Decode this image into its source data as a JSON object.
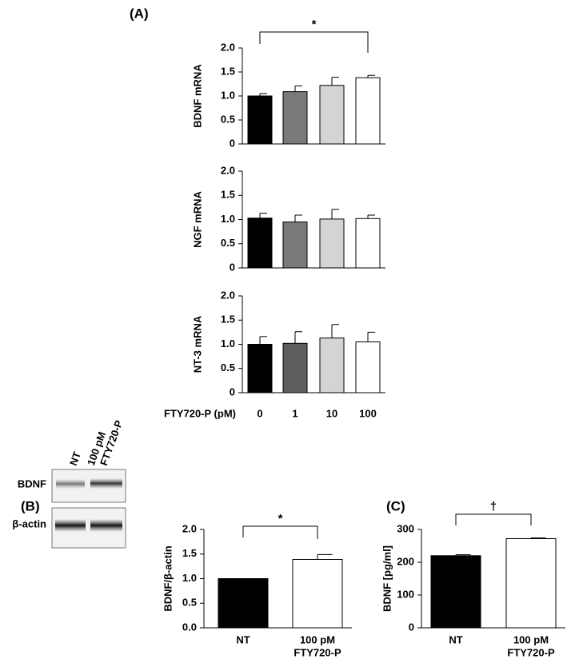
{
  "chart_data": [
    {
      "type": "bar",
      "panel_label": "(A)",
      "y_label": "BDNF mRNA",
      "annotation": "*",
      "values": [
        1.0,
        1.09,
        1.22,
        1.38
      ],
      "errors": [
        0.05,
        0.12,
        0.17,
        0.05
      ],
      "colors": [
        "#000000",
        "#7a7a7a",
        "#d4d4d4",
        "#ffffff"
      ],
      "ylim": [
        0,
        2
      ],
      "yticks": [
        0,
        0.5,
        {
          "value": 1,
          "label": "1.0"
        },
        1.5,
        {
          "value": 2,
          "label": "2.0"
        }
      ]
    },
    {
      "type": "bar",
      "y_label": "NGF mRNA",
      "values": [
        1.03,
        0.95,
        1.01,
        1.02
      ],
      "errors": [
        0.1,
        0.14,
        0.2,
        0.07
      ],
      "colors": [
        "#000000",
        "#7a7a7a",
        "#d4d4d4",
        "#ffffff"
      ],
      "ylim": [
        0,
        2
      ],
      "yticks": [
        0,
        0.5,
        {
          "value": 1,
          "label": "1.0"
        },
        1.5,
        {
          "value": 2,
          "label": "2.0"
        }
      ]
    },
    {
      "type": "bar",
      "y_label": "NT-3 mRNA",
      "x_label": "FTY720-P (pM)",
      "categories": [
        "0",
        "1",
        "10",
        "100"
      ],
      "values": [
        1.0,
        1.02,
        1.13,
        1.05
      ],
      "errors": [
        0.16,
        0.24,
        0.28,
        0.2
      ],
      "colors": [
        "#000000",
        "#5e5e5e",
        "#d4d4d4",
        "#ffffff"
      ],
      "ylim": [
        0,
        2
      ],
      "yticks": [
        0,
        0.5,
        {
          "value": 1,
          "label": "1.0"
        },
        1.5,
        {
          "value": 2,
          "label": "2.0"
        }
      ]
    },
    {
      "type": "bar",
      "panel_label": "(B)",
      "y_label": "BDNF/β-actin",
      "annotation": "*",
      "blot": {
        "lanes": [
          [
            "NT"
          ],
          [
            "100 pM",
            "FTY720-P"
          ]
        ],
        "rows": [
          "BDNF",
          "β-actin"
        ]
      },
      "categories": [
        [
          "NT"
        ],
        [
          "100 pM",
          "FTY720-P"
        ]
      ],
      "values": [
        1.0,
        1.39
      ],
      "errors": [
        0,
        0.1
      ],
      "colors": [
        "#000000",
        "#ffffff"
      ],
      "ylim": [
        0,
        2
      ],
      "yticks": [
        {
          "value": 0,
          "label": "0.0"
        },
        0.5,
        {
          "value": 1,
          "label": "1.0"
        },
        1.5,
        {
          "value": 2,
          "label": "2.0"
        }
      ]
    },
    {
      "type": "bar",
      "panel_label": "(C)",
      "y_label": "BDNF [pg/ml]",
      "annotation": "†",
      "categories": [
        [
          "NT"
        ],
        [
          "100 pM",
          "FTY720-P"
        ]
      ],
      "values": [
        220,
        272
      ],
      "errors": [
        3,
        2
      ],
      "colors": [
        "#000000",
        "#ffffff"
      ],
      "ylim": [
        0,
        300
      ],
      "yticks": [
        0,
        100,
        200,
        300
      ]
    }
  ]
}
